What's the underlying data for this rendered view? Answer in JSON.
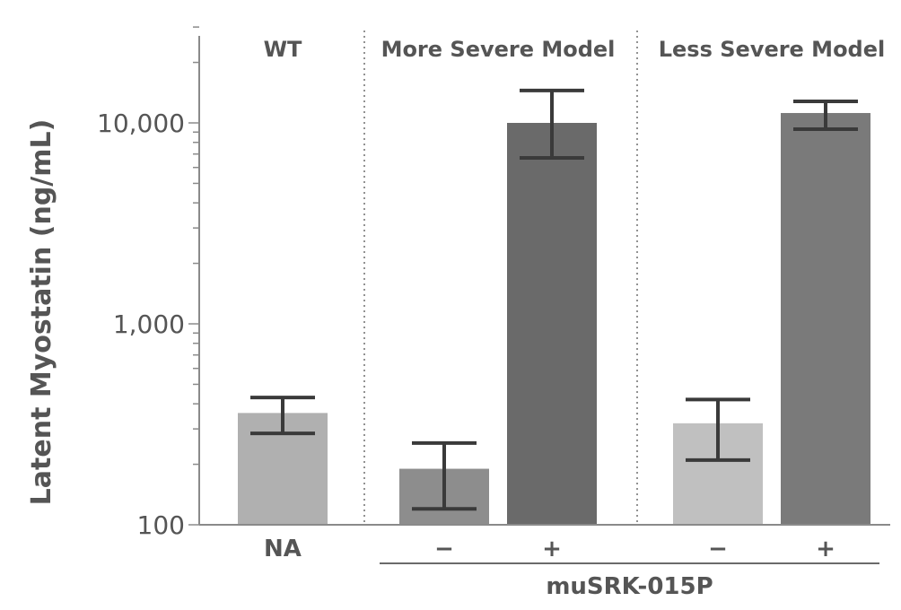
{
  "chart_data": {
    "type": "bar",
    "title": "",
    "ylabel": "Latent Myostatin (ng/mL)",
    "xlabel": "",
    "yscale": "log",
    "ylim": [
      100,
      30000
    ],
    "yticks": [
      100,
      1000,
      10000
    ],
    "ytick_labels": [
      "100",
      "1,000",
      "10,000"
    ],
    "grid": false,
    "legend": "none",
    "groups": [
      {
        "name": "WT"
      },
      {
        "name": "More Severe Model"
      },
      {
        "name": "Less Severe Model"
      }
    ],
    "bars": [
      {
        "group": 0,
        "label": "NA",
        "value": 360,
        "err_low": 285,
        "err_high": 430,
        "color": "#b0b0b0"
      },
      {
        "group": 1,
        "label": "−",
        "value": 190,
        "err_low": 120,
        "err_high": 255,
        "color": "#8d8d8d"
      },
      {
        "group": 1,
        "label": "+",
        "value": 10000,
        "err_low": 6700,
        "err_high": 14500,
        "color": "#6a6a6a"
      },
      {
        "group": 2,
        "label": "−",
        "value": 320,
        "err_low": 210,
        "err_high": 420,
        "color": "#c0c0c0"
      },
      {
        "group": 2,
        "label": "+",
        "value": 11200,
        "err_low": 9300,
        "err_high": 12800,
        "color": "#7a7a7a"
      }
    ],
    "bracket_label": "muSRK-015P",
    "bracket_bars": [
      1,
      2,
      3,
      4
    ]
  }
}
